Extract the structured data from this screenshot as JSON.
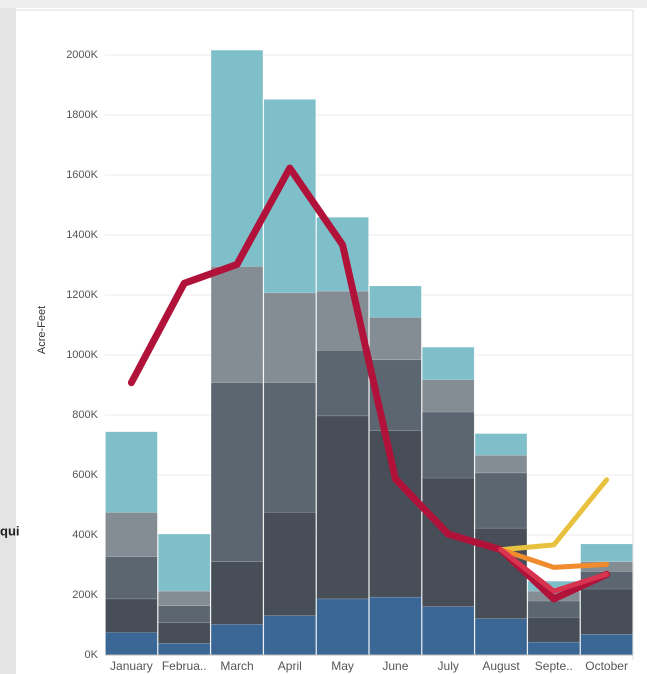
{
  "sidebar_text": "qui",
  "chart_data": {
    "type": "bar",
    "y_label": "Acre-Feet",
    "categories": [
      "January",
      "Februa..",
      "March",
      "April",
      "May",
      "June",
      "July",
      "August",
      "Septe..",
      "October"
    ],
    "ylim": [
      0,
      2050000
    ],
    "yticks": [
      {
        "value": 0,
        "label": "0K"
      },
      {
        "value": 200000,
        "label": "200K"
      },
      {
        "value": 400000,
        "label": "400K"
      },
      {
        "value": 600000,
        "label": "600K"
      },
      {
        "value": 800000,
        "label": "800K"
      },
      {
        "value": 1000000,
        "label": "1000K"
      },
      {
        "value": 1200000,
        "label": "1200K"
      },
      {
        "value": 1400000,
        "label": "1400K"
      },
      {
        "value": 1600000,
        "label": "1600K"
      },
      {
        "value": 1800000,
        "label": "1800K"
      },
      {
        "value": 2000000,
        "label": "2000K"
      }
    ],
    "grid": true,
    "series": [
      {
        "color": "#3b6796",
        "values": [
          75000,
          39000,
          102000,
          131000,
          187000,
          193000,
          161000,
          121000,
          43000,
          69000
        ]
      },
      {
        "color": "#474e58",
        "values": [
          112000,
          69000,
          209000,
          344000,
          610000,
          555000,
          429000,
          302000,
          82000,
          151000
        ]
      },
      {
        "color": "#5c6670",
        "values": [
          141000,
          56000,
          597000,
          433000,
          219000,
          236000,
          220000,
          184000,
          55000,
          59000
        ]
      },
      {
        "color": "#858d94",
        "values": [
          147000,
          49000,
          387000,
          299000,
          197000,
          141000,
          108000,
          59000,
          33000,
          32000
        ]
      },
      {
        "color": "#7fbfca",
        "values": [
          269000,
          190000,
          721000,
          645000,
          246000,
          105000,
          108000,
          72000,
          33000,
          59000
        ]
      }
    ],
    "lines": [
      {
        "color": "#b0123a",
        "values": [
          908000,
          1239000,
          1302000,
          1623000,
          1367000,
          587000,
          403000,
          351000,
          187000,
          269000
        ]
      },
      {
        "color": "#e8c23f",
        "values": [
          null,
          null,
          null,
          null,
          null,
          null,
          null,
          351000,
          367000,
          584000
        ]
      },
      {
        "color": "#f08c2e",
        "values": [
          null,
          null,
          null,
          null,
          null,
          null,
          null,
          351000,
          292000,
          302000
        ]
      },
      {
        "color": "#d9344f",
        "values": [
          null,
          null,
          null,
          null,
          null,
          null,
          null,
          351000,
          213000,
          269000
        ]
      }
    ]
  }
}
